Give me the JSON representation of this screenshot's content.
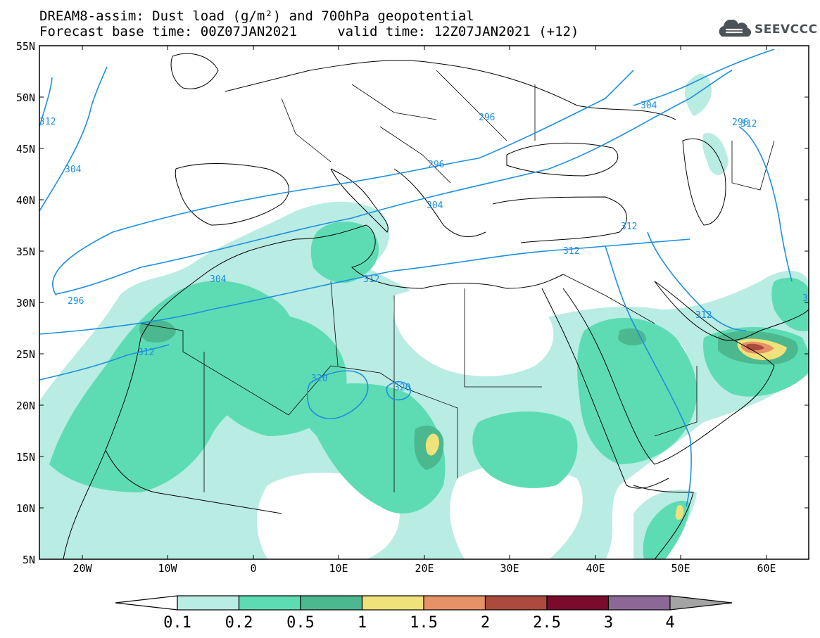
{
  "title": {
    "line1": "DREAM8-assim: Dust load (g/m²) and 700hPa geopotential",
    "line2": "Forecast base time: 00Z07JAN2021     valid time: 12Z07JAN2021 (+12)"
  },
  "logo": {
    "text": "SEEVCCC",
    "icon": "cloud-icon"
  },
  "map": {
    "lon_range": [
      -25,
      65
    ],
    "lat_range": [
      5,
      55
    ],
    "lat_ticks": [
      "55N",
      "50N",
      "45N",
      "40N",
      "35N",
      "30N",
      "25N",
      "20N",
      "15N",
      "10N",
      "5N"
    ],
    "lon_ticks": [
      "20W",
      "10W",
      "0",
      "10E",
      "20E",
      "30E",
      "40E",
      "50E",
      "60E"
    ],
    "colors": {
      "frame": "#000000",
      "contour": "#1d8fe0",
      "coast": "#000000"
    }
  },
  "contours": {
    "labels": [
      "312",
      "304",
      "296",
      "296",
      "304",
      "312",
      "320",
      "320",
      "312",
      "304",
      "312",
      "312",
      "312",
      "296",
      "304",
      "296",
      "312",
      "3"
    ]
  },
  "colorbar": {
    "labels": [
      "0.1",
      "0.2",
      "0.5",
      "1",
      "1.5",
      "2",
      "2.5",
      "3",
      "4"
    ],
    "colors": [
      "#b9ece3",
      "#5ddcb3",
      "#4cb88f",
      "#f0e27a",
      "#e79166",
      "#aa4b3d",
      "#7a0b2d",
      "#8c6897",
      "#a4a4a4"
    ]
  }
}
